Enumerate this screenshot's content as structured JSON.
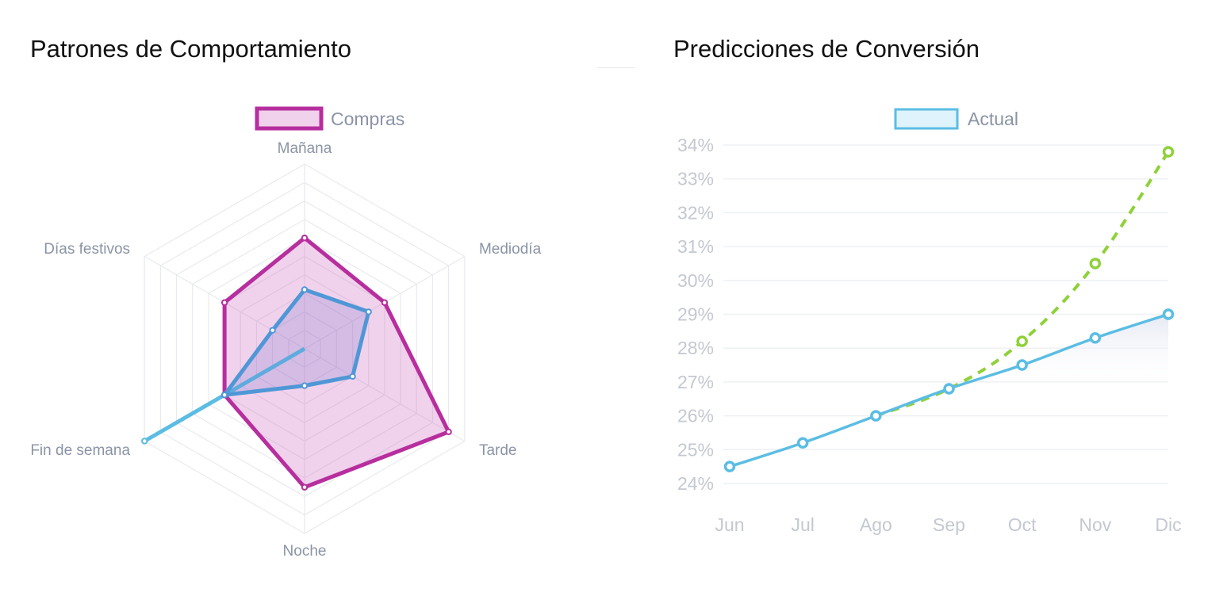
{
  "colors": {
    "compras": "#b72e9e",
    "compras_fill": "rgba(205,95,185,0.28)",
    "blue": "#4f97d6",
    "blue_fill": "rgba(110,110,205,0.22)",
    "cyan": "#5bbde3",
    "cyan_fill": "rgba(130,215,240,0.45)",
    "green": "#8fd13a",
    "grid": "#e8eaee"
  },
  "left": {
    "title": "Patrones de Comportamiento",
    "legend": "Compras"
  },
  "right": {
    "title": "Predicciones de Conversión",
    "legend": "Actual"
  },
  "chart_data": [
    {
      "type": "radar",
      "title": "Patrones de Comportamiento",
      "labels": [
        "Mañana",
        "Mediodía",
        "Tarde",
        "Noche",
        "Fin de semana",
        "Días festivos"
      ],
      "r_range": [
        0,
        100
      ],
      "grid": true,
      "legend_position": "top",
      "series": [
        {
          "name": "Compras",
          "values": [
            60,
            50,
            90,
            75,
            50,
            50
          ]
        },
        {
          "values": [
            32,
            40,
            30,
            20,
            50,
            20
          ]
        },
        {
          "values": [
            0,
            0,
            0,
            0,
            100,
            0
          ]
        }
      ]
    },
    {
      "type": "line",
      "title": "Predicciones de Conversión",
      "categories": [
        "Jun",
        "Jul",
        "Ago",
        "Sep",
        "Oct",
        "Nov",
        "Dic"
      ],
      "ylim": [
        24,
        34
      ],
      "yticks": [
        "24%",
        "25%",
        "26%",
        "27%",
        "28%",
        "29%",
        "30%",
        "31%",
        "32%",
        "33%",
        "34%"
      ],
      "grid": true,
      "legend_position": "top",
      "series": [
        {
          "name": "Actual",
          "values": [
            24.5,
            25.2,
            26.0,
            26.8,
            27.5,
            28.3,
            29.0
          ]
        },
        {
          "style": "dashed",
          "values": [
            null,
            null,
            26.0,
            26.8,
            28.2,
            30.5,
            33.8
          ]
        }
      ]
    }
  ]
}
